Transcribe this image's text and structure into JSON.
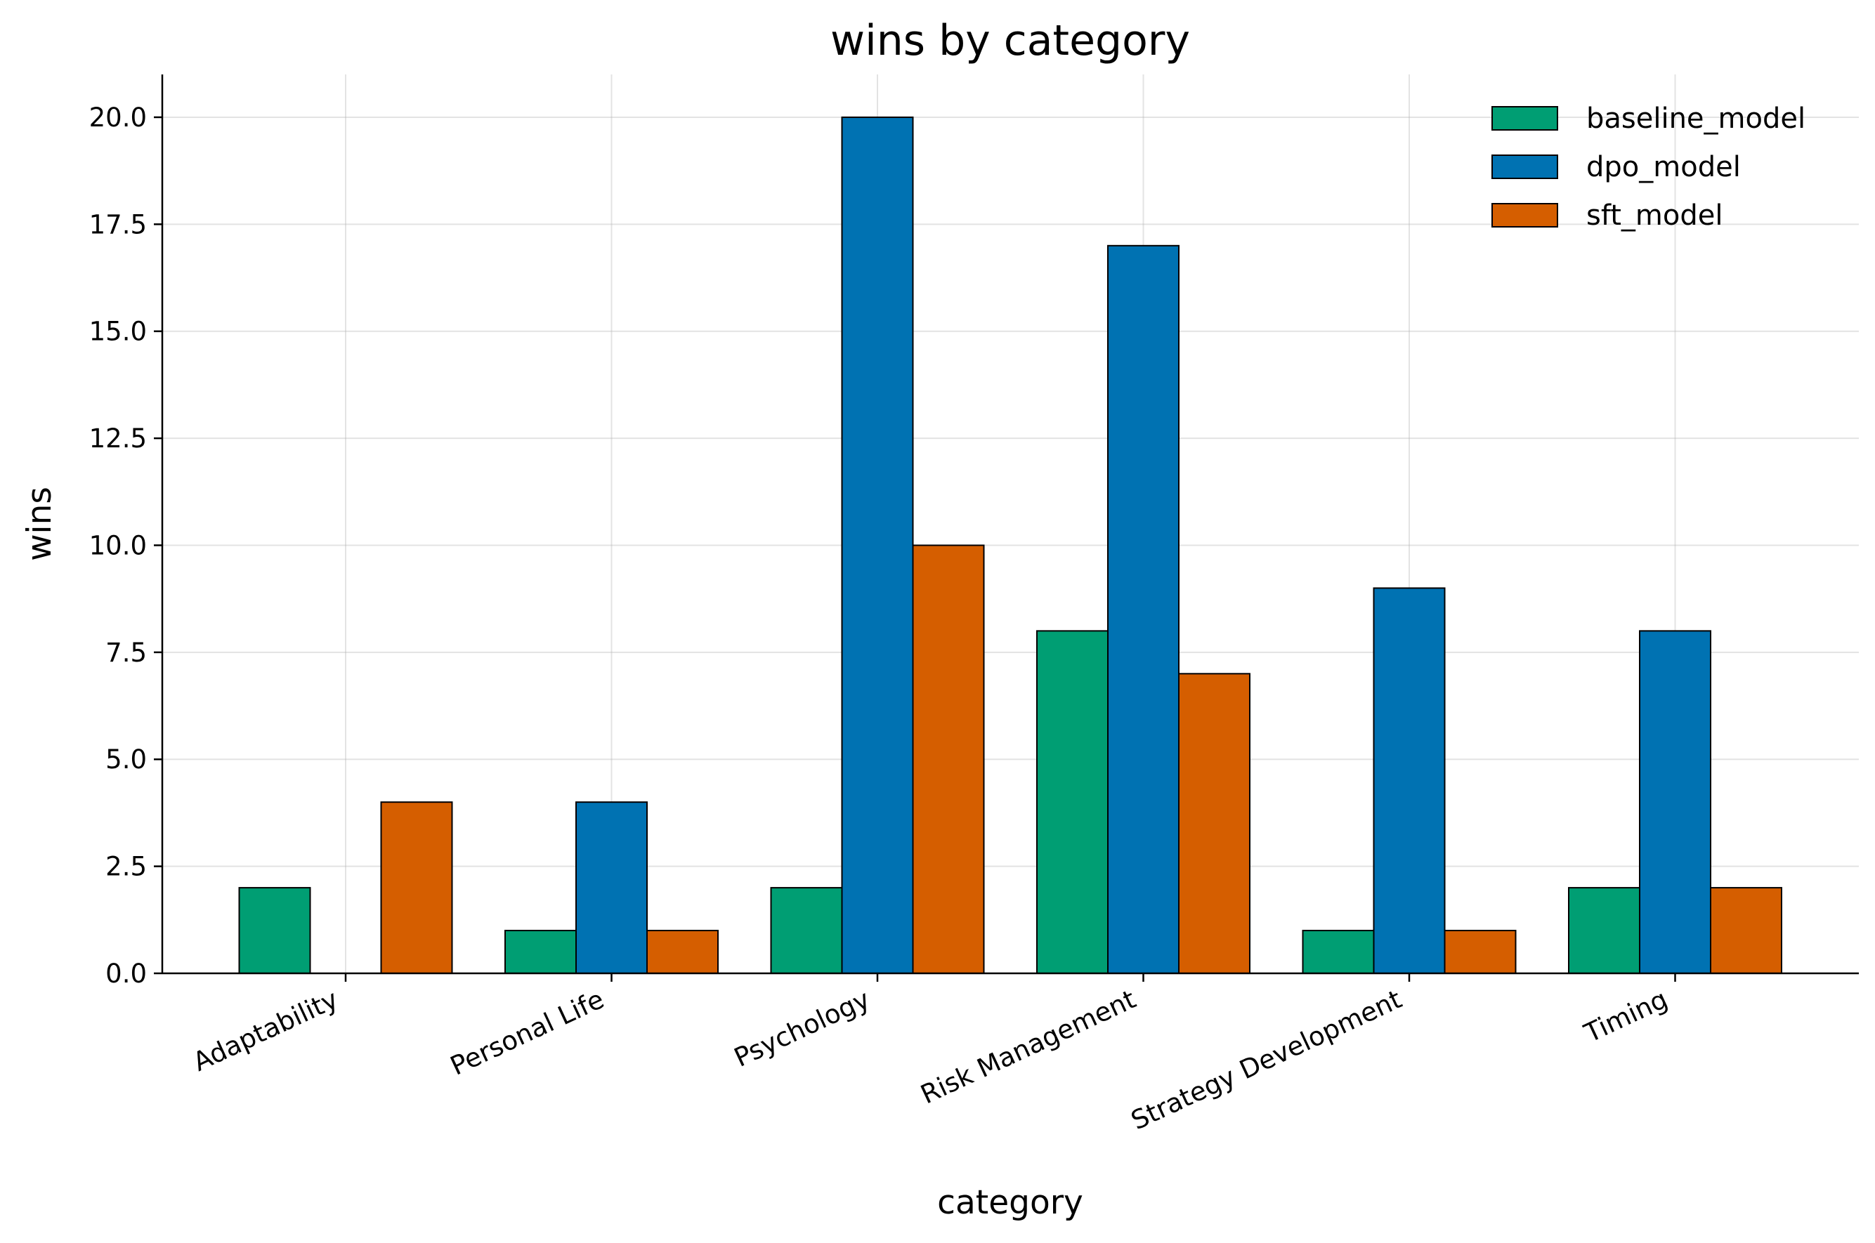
{
  "chart_data": {
    "type": "bar",
    "title": "wins by category",
    "xlabel": "category",
    "ylabel": "wins",
    "ylim": [
      0,
      21
    ],
    "yticks": [
      "0.0",
      "2.5",
      "5.0",
      "7.5",
      "10.0",
      "12.5",
      "15.0",
      "17.5",
      "20.0"
    ],
    "categories": [
      "Adaptability",
      "Personal Life",
      "Psychology",
      "Risk Management",
      "Strategy Development",
      "Timing"
    ],
    "series": [
      {
        "name": "baseline_model",
        "color": "#009E73",
        "values": [
          2,
          1,
          2,
          8,
          1,
          2
        ]
      },
      {
        "name": "dpo_model",
        "color": "#0072B2",
        "values": [
          0,
          4,
          20,
          17,
          9,
          8
        ]
      },
      {
        "name": "sft_model",
        "color": "#D55E00",
        "values": [
          4,
          1,
          10,
          7,
          1,
          2
        ]
      }
    ],
    "grid": true,
    "legend_position": "top-right"
  }
}
